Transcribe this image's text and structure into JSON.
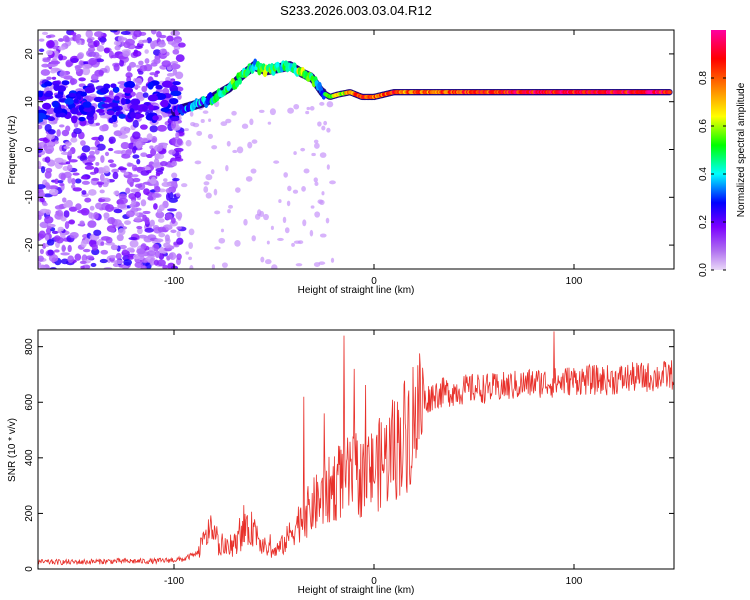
{
  "chart_data": [
    {
      "type": "heatmap",
      "title": "S233.2026.003.03.04.R12",
      "xlabel": "Height of straight line (km)",
      "ylabel": "Frequency (Hz)",
      "xlim": [
        -168,
        150
      ],
      "ylim": [
        -25,
        25
      ],
      "xticks": [
        -100,
        0,
        100
      ],
      "xtick_labels": [
        "-100",
        "0",
        "100"
      ],
      "yticks": [
        -20,
        -10,
        0,
        10,
        20
      ],
      "ytick_labels": [
        "-20",
        "-10",
        "0",
        "10",
        "20"
      ],
      "colorbar": {
        "label": "Normalized spectral amplitude",
        "range": [
          0,
          1
        ],
        "ticks": [
          0.0,
          0.2,
          0.4,
          0.6,
          0.8
        ],
        "tick_labels": [
          "0.0",
          "0.2",
          "0.4",
          "0.6",
          "0.8"
        ],
        "colormap": [
          "#e9d8f7",
          "#7b00ff",
          "#0000ff",
          "#00ffff",
          "#00ff00",
          "#ffff00",
          "#ff8000",
          "#ff0000",
          "#ff00a0"
        ]
      },
      "ridge": {
        "x": [
          -100,
          -92,
          -84,
          -78,
          -72,
          -66,
          -60,
          -54,
          -48,
          -42,
          -36,
          -31,
          -26,
          -22,
          -18,
          -12,
          -6,
          0,
          10,
          20,
          40,
          60,
          80,
          100,
          120,
          148
        ],
        "y": [
          8,
          9,
          10,
          11.5,
          13,
          15.5,
          17.5,
          16.5,
          17,
          17.5,
          16,
          15,
          12,
          11,
          11.5,
          12,
          11,
          11,
          12,
          12,
          12,
          12,
          12,
          12,
          12,
          12
        ],
        "amplitude": [
          0.2,
          0.3,
          0.3,
          0.4,
          0.45,
          0.45,
          0.4,
          0.5,
          0.45,
          0.4,
          0.6,
          0.5,
          0.35,
          0.5,
          0.6,
          0.7,
          0.85,
          0.8,
          0.8,
          0.75,
          0.8,
          0.85,
          0.9,
          0.9,
          0.9,
          0.9
        ]
      }
    },
    {
      "type": "line",
      "xlabel": "Height of straight line (km)",
      "ylabel": "SNR (10 * v/v)",
      "xlim": [
        -168,
        150
      ],
      "ylim": [
        0,
        860
      ],
      "xticks": [
        -100,
        0,
        100
      ],
      "xtick_labels": [
        "-100",
        "0",
        "100"
      ],
      "yticks": [
        0,
        200,
        400,
        600,
        800
      ],
      "ytick_labels": [
        "0",
        "200",
        "400",
        "600",
        "800"
      ],
      "color": "#e8302a",
      "series": [
        {
          "name": "SNR",
          "x": [
            -168,
            -150,
            -130,
            -110,
            -95,
            -88,
            -82,
            -78,
            -72,
            -66,
            -60,
            -55,
            -50,
            -45,
            -40,
            -35,
            -30,
            -25,
            -20,
            -15,
            -10,
            -5,
            0,
            5,
            10,
            15,
            20,
            25,
            30,
            40,
            50,
            60,
            70,
            80,
            90,
            100,
            110,
            120,
            130,
            140,
            150
          ],
          "values": [
            25,
            25,
            28,
            28,
            35,
            60,
            140,
            90,
            70,
            120,
            150,
            80,
            60,
            90,
            150,
            190,
            230,
            260,
            300,
            330,
            330,
            330,
            360,
            390,
            430,
            480,
            540,
            600,
            630,
            640,
            650,
            650,
            660,
            670,
            670,
            680,
            680,
            680,
            690,
            690,
            700
          ],
          "spikes": [
            {
              "x": -82,
              "y": 160
            },
            {
              "x": -65,
              "y": 230
            },
            {
              "x": -35,
              "y": 620
            },
            {
              "x": -25,
              "y": 560
            },
            {
              "x": -15,
              "y": 840
            },
            {
              "x": -10,
              "y": 720
            },
            {
              "x": 90,
              "y": 855
            }
          ]
        }
      ]
    }
  ]
}
